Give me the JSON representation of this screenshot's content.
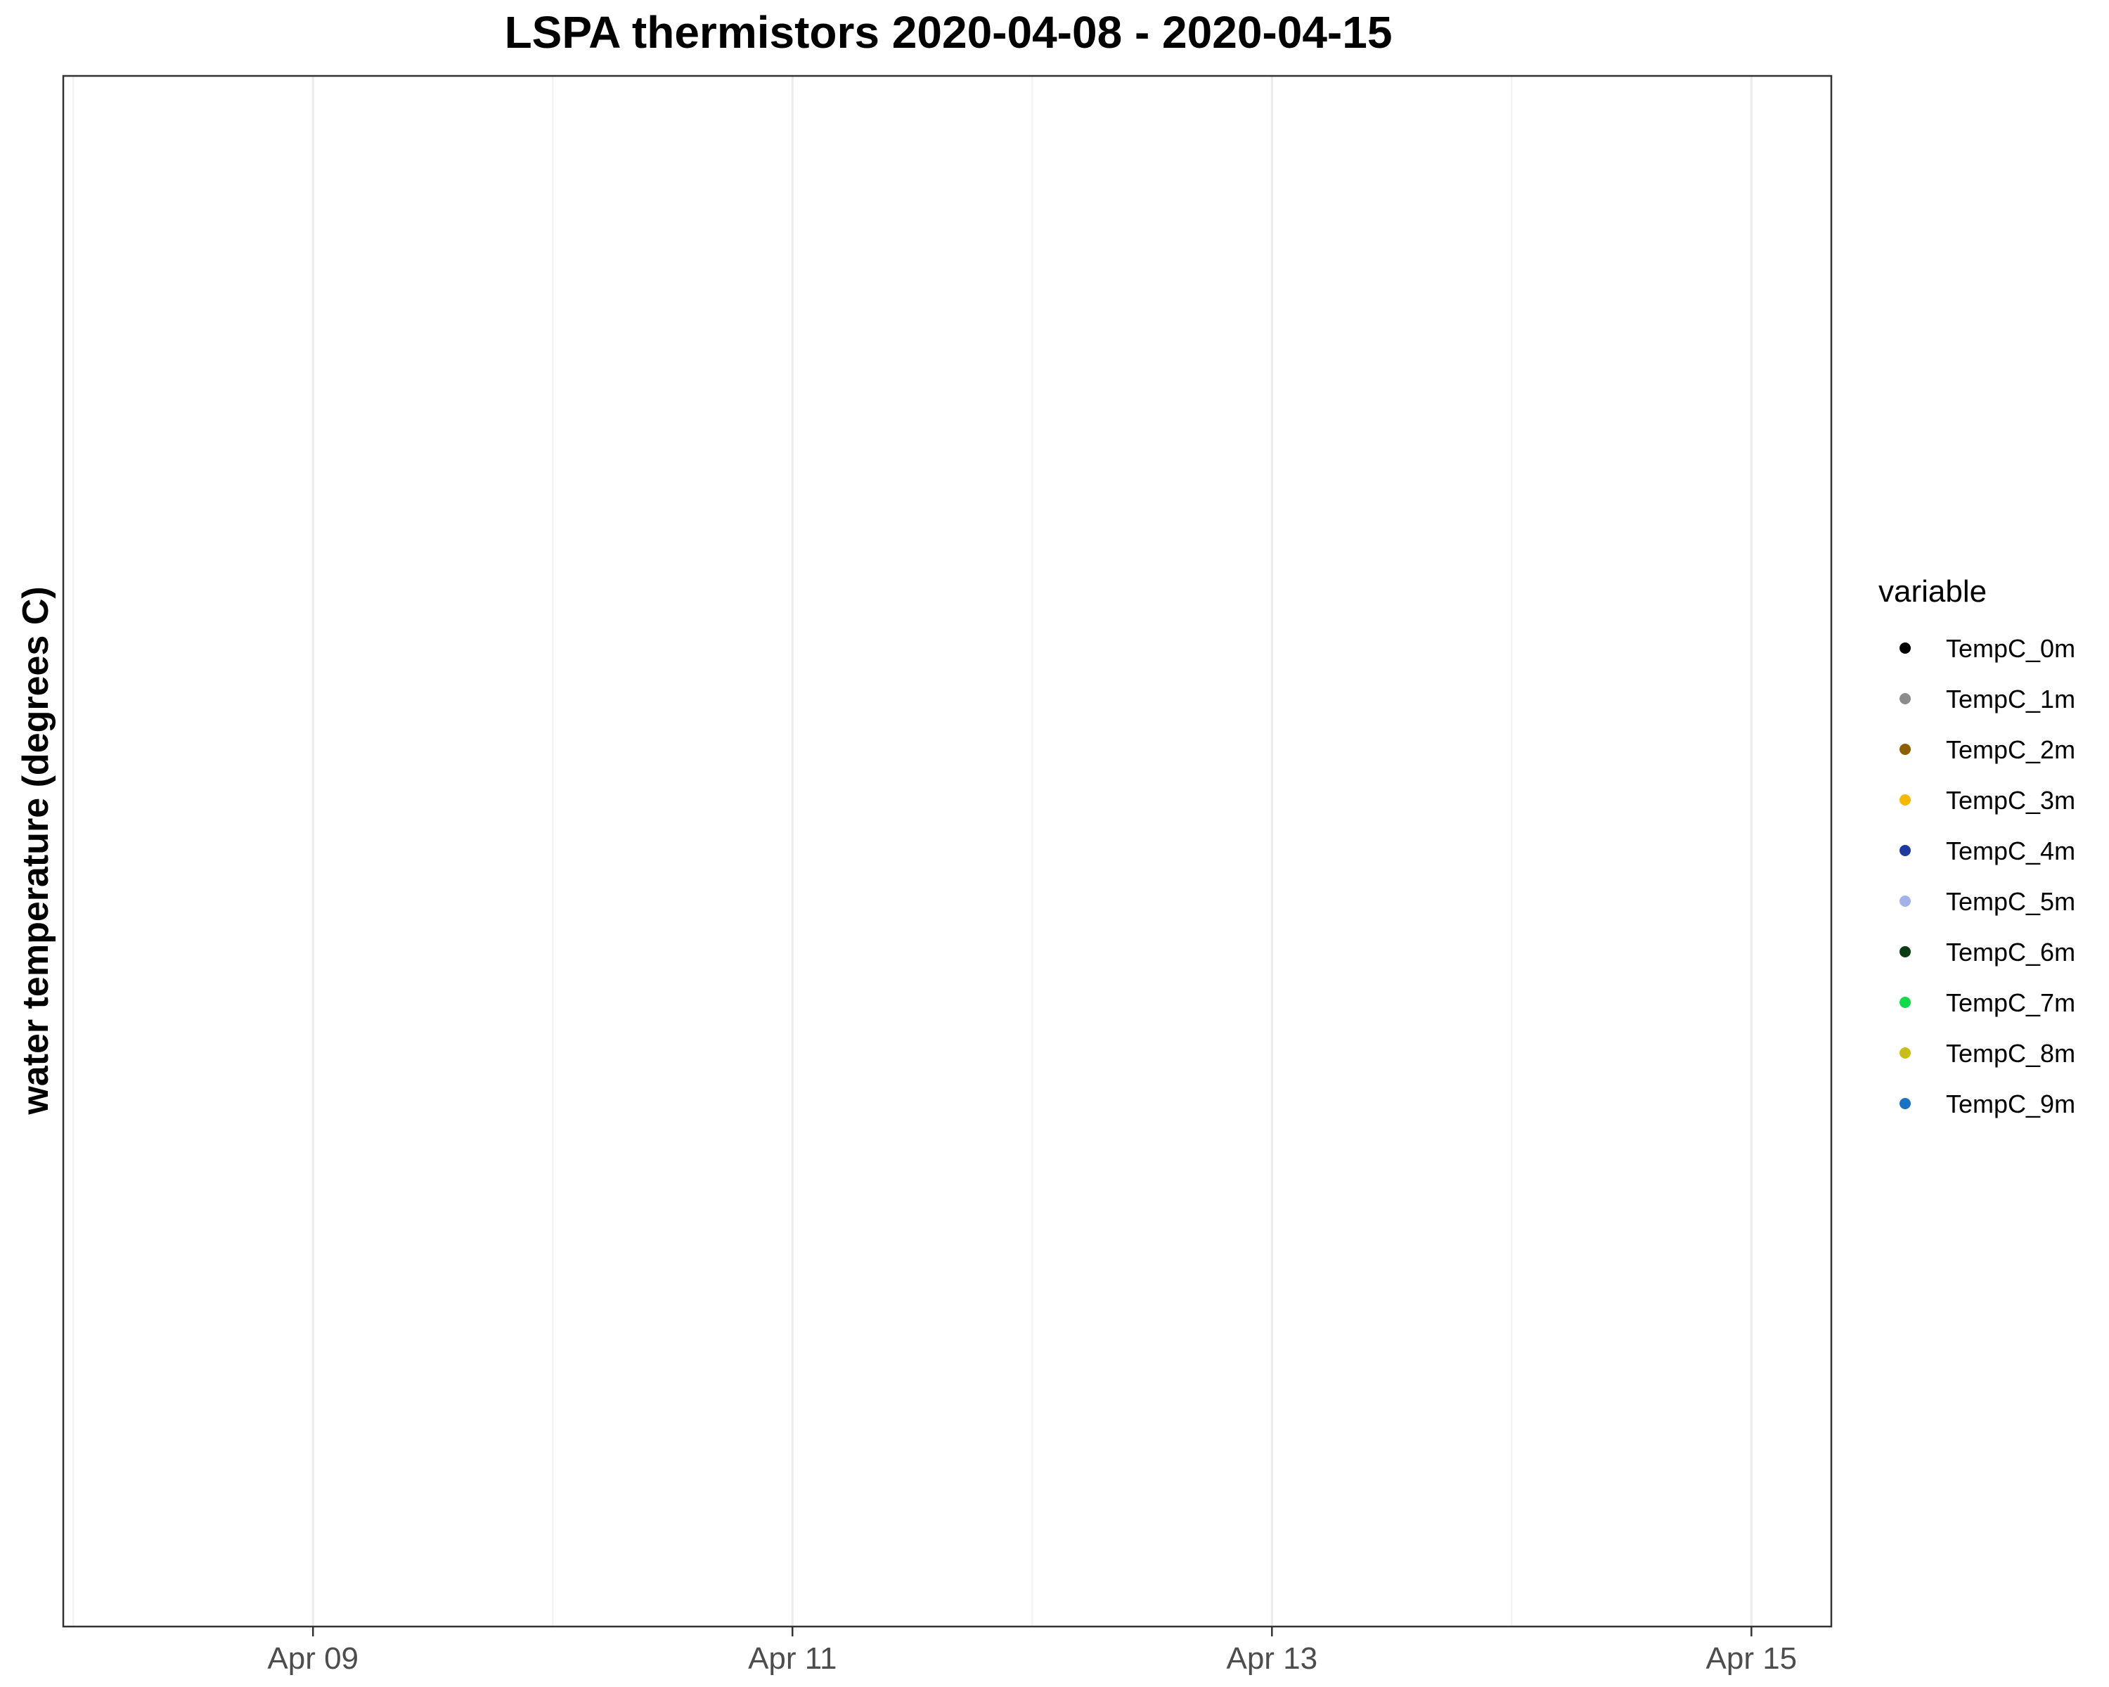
{
  "chart_data": {
    "type": "scatter",
    "title": "LSPA thermistors 2020-04-08 - 2020-04-15",
    "xlabel": "",
    "ylabel": "water temperature (degrees C)",
    "x_type": "date",
    "xlim": [
      "2020-04-07T23:00",
      "2020-04-15T08:00"
    ],
    "x_ticks": [
      {
        "value": "2020-04-09",
        "label": "Apr 09"
      },
      {
        "value": "2020-04-11",
        "label": "Apr 11"
      },
      {
        "value": "2020-04-13",
        "label": "Apr 13"
      },
      {
        "value": "2020-04-15",
        "label": "Apr 15"
      }
    ],
    "x_minor_ticks": [
      "2020-04-08",
      "2020-04-10",
      "2020-04-12",
      "2020-04-14"
    ],
    "grid": true,
    "legend": {
      "title": "variable",
      "position": "right"
    },
    "series": [
      {
        "name": "TempC_0m",
        "color": "#000000",
        "points": []
      },
      {
        "name": "TempC_1m",
        "color": "#8c8c8c",
        "points": []
      },
      {
        "name": "TempC_2m",
        "color": "#8c5f00",
        "points": []
      },
      {
        "name": "TempC_3m",
        "color": "#f5b800",
        "points": []
      },
      {
        "name": "TempC_4m",
        "color": "#1f3a9e",
        "points": []
      },
      {
        "name": "TempC_5m",
        "color": "#a3b3ea",
        "points": []
      },
      {
        "name": "TempC_6m",
        "color": "#0b3d14",
        "points": []
      },
      {
        "name": "TempC_7m",
        "color": "#14d94a",
        "points": []
      },
      {
        "name": "TempC_8m",
        "color": "#c8bd1a",
        "points": []
      },
      {
        "name": "TempC_9m",
        "color": "#1a73c2",
        "points": []
      }
    ]
  }
}
